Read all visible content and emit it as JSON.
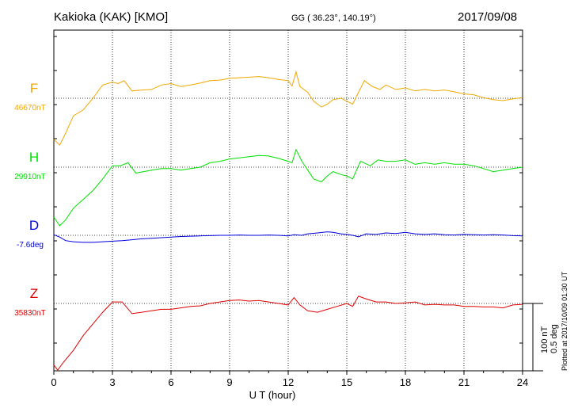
{
  "header": {
    "station": "Kakioka (KAK)  [KMO]",
    "coordinates": "GG ( 36.23°, 140.19°)",
    "date": "2017/09/08"
  },
  "plotted_note": "Plotted at 2017/10/09 01:30 UT",
  "scale": {
    "field": "100 nT",
    "angle": "0.5 deg"
  },
  "colors": {
    "F": "#f0a800",
    "H": "#00e000",
    "D": "#0000dd",
    "Z": "#dd0000"
  },
  "chart_data": {
    "type": "line",
    "title": "Kakioka (KAK)  [KMO]",
    "xlabel": "U T (hour)",
    "xlim": [
      0,
      24
    ],
    "xticks": [
      "0",
      "3",
      "6",
      "9",
      "12",
      "15",
      "18",
      "21",
      "24"
    ],
    "grid": true,
    "scale_bar": "100 nT / 0.5 deg",
    "series": [
      {
        "key": "F",
        "name": "F",
        "baseline": "46670nT",
        "values": [
          [
            0,
            -140
          ],
          [
            0.3,
            -160
          ],
          [
            0.6,
            -120
          ],
          [
            1,
            -60
          ],
          [
            1.5,
            -40
          ],
          [
            2,
            0
          ],
          [
            2.5,
            45
          ],
          [
            3,
            55
          ],
          [
            3.3,
            50
          ],
          [
            3.6,
            60
          ],
          [
            4,
            25
          ],
          [
            4.5,
            28
          ],
          [
            5,
            30
          ],
          [
            5.5,
            45
          ],
          [
            6,
            50
          ],
          [
            6.5,
            40
          ],
          [
            7,
            45
          ],
          [
            7.5,
            52
          ],
          [
            8,
            60
          ],
          [
            8.5,
            62
          ],
          [
            9,
            68
          ],
          [
            9.5,
            70
          ],
          [
            10,
            72
          ],
          [
            10.5,
            74
          ],
          [
            11,
            70
          ],
          [
            11.5,
            64
          ],
          [
            12,
            60
          ],
          [
            12.2,
            42
          ],
          [
            12.4,
            90
          ],
          [
            12.6,
            40
          ],
          [
            13,
            20
          ],
          [
            13.3,
            -10
          ],
          [
            13.7,
            -30
          ],
          [
            14,
            -20
          ],
          [
            14.3,
            -5
          ],
          [
            14.7,
            0
          ],
          [
            15,
            -10
          ],
          [
            15.3,
            -20
          ],
          [
            15.6,
            20
          ],
          [
            15.9,
            60
          ],
          [
            16.3,
            40
          ],
          [
            16.7,
            30
          ],
          [
            17,
            45
          ],
          [
            17.5,
            30
          ],
          [
            18,
            35
          ],
          [
            18.5,
            25
          ],
          [
            19,
            30
          ],
          [
            19.5,
            25
          ],
          [
            20,
            28
          ],
          [
            20.5,
            22
          ],
          [
            21,
            15
          ],
          [
            21.5,
            12
          ],
          [
            22,
            2
          ],
          [
            22.5,
            -5
          ],
          [
            23,
            -8
          ],
          [
            23.5,
            -2
          ],
          [
            24,
            2
          ]
        ]
      },
      {
        "key": "H",
        "name": "H",
        "baseline": "29910nT",
        "values": [
          [
            0,
            -170
          ],
          [
            0.3,
            -200
          ],
          [
            0.6,
            -180
          ],
          [
            1,
            -140
          ],
          [
            1.5,
            -110
          ],
          [
            2,
            -80
          ],
          [
            2.5,
            -40
          ],
          [
            3,
            5
          ],
          [
            3.4,
            5
          ],
          [
            3.8,
            15
          ],
          [
            4.2,
            -20
          ],
          [
            4.6,
            -15
          ],
          [
            5,
            -10
          ],
          [
            5.5,
            -5
          ],
          [
            6,
            -5
          ],
          [
            6.5,
            -10
          ],
          [
            7,
            -5
          ],
          [
            7.5,
            0
          ],
          [
            8,
            15
          ],
          [
            8.5,
            20
          ],
          [
            9,
            28
          ],
          [
            9.5,
            32
          ],
          [
            10,
            36
          ],
          [
            10.5,
            40
          ],
          [
            11,
            38
          ],
          [
            11.5,
            30
          ],
          [
            12,
            20
          ],
          [
            12.2,
            15
          ],
          [
            12.4,
            60
          ],
          [
            12.7,
            20
          ],
          [
            13,
            -10
          ],
          [
            13.3,
            -40
          ],
          [
            13.7,
            -50
          ],
          [
            14,
            -30
          ],
          [
            14.3,
            -15
          ],
          [
            14.7,
            -25
          ],
          [
            15,
            -30
          ],
          [
            15.3,
            -40
          ],
          [
            15.7,
            20
          ],
          [
            16.2,
            5
          ],
          [
            16.6,
            25
          ],
          [
            17,
            20
          ],
          [
            17.5,
            20
          ],
          [
            18,
            25
          ],
          [
            18.5,
            10
          ],
          [
            19,
            15
          ],
          [
            19.5,
            10
          ],
          [
            20,
            15
          ],
          [
            20.5,
            10
          ],
          [
            21,
            10
          ],
          [
            21.5,
            5
          ],
          [
            22,
            -5
          ],
          [
            22.5,
            -15
          ],
          [
            23,
            -10
          ],
          [
            23.5,
            -5
          ],
          [
            24,
            0
          ]
        ]
      },
      {
        "key": "D",
        "name": "D",
        "baseline": "-7.6deg",
        "values": [
          [
            0,
            2
          ],
          [
            0.3,
            -6
          ],
          [
            0.6,
            -18
          ],
          [
            1,
            -22
          ],
          [
            1.5,
            -24
          ],
          [
            2,
            -24
          ],
          [
            2.5,
            -22
          ],
          [
            3,
            -20
          ],
          [
            3.5,
            -18
          ],
          [
            4,
            -15
          ],
          [
            4.5,
            -12
          ],
          [
            5,
            -10
          ],
          [
            5.5,
            -8
          ],
          [
            6,
            -6
          ],
          [
            6.5,
            -4
          ],
          [
            7,
            -3
          ],
          [
            7.5,
            -2
          ],
          [
            8,
            -1
          ],
          [
            8.5,
            0
          ],
          [
            9,
            0
          ],
          [
            9.5,
            1
          ],
          [
            10,
            0
          ],
          [
            10.5,
            0
          ],
          [
            11,
            1
          ],
          [
            11.5,
            0
          ],
          [
            12,
            -2
          ],
          [
            12.3,
            2
          ],
          [
            12.7,
            0
          ],
          [
            13,
            5
          ],
          [
            13.5,
            8
          ],
          [
            14,
            12
          ],
          [
            14.3,
            10
          ],
          [
            14.7,
            5
          ],
          [
            15,
            3
          ],
          [
            15.3,
            0
          ],
          [
            15.6,
            -5
          ],
          [
            16,
            5
          ],
          [
            16.5,
            3
          ],
          [
            17,
            8
          ],
          [
            17.5,
            6
          ],
          [
            18,
            10
          ],
          [
            18.5,
            5
          ],
          [
            19,
            3
          ],
          [
            19.5,
            5
          ],
          [
            20,
            2
          ],
          [
            20.5,
            1
          ],
          [
            21,
            3
          ],
          [
            21.5,
            2
          ],
          [
            22,
            1
          ],
          [
            22.5,
            2
          ],
          [
            23,
            1
          ],
          [
            23.5,
            -1
          ],
          [
            24,
            -2
          ]
        ]
      },
      {
        "key": "Z",
        "name": "Z",
        "baseline": "35830nT",
        "values": [
          [
            0,
            -210
          ],
          [
            0.2,
            -230
          ],
          [
            0.5,
            -200
          ],
          [
            1,
            -160
          ],
          [
            1.5,
            -110
          ],
          [
            2,
            -70
          ],
          [
            2.5,
            -30
          ],
          [
            3,
            5
          ],
          [
            3.5,
            5
          ],
          [
            4,
            -35
          ],
          [
            4.5,
            -30
          ],
          [
            5,
            -25
          ],
          [
            5.5,
            -20
          ],
          [
            6,
            -20
          ],
          [
            6.5,
            -15
          ],
          [
            7,
            -10
          ],
          [
            7.5,
            -8
          ],
          [
            8,
            0
          ],
          [
            8.5,
            5
          ],
          [
            9,
            10
          ],
          [
            9.5,
            12
          ],
          [
            10,
            8
          ],
          [
            10.5,
            10
          ],
          [
            11,
            5
          ],
          [
            11.5,
            0
          ],
          [
            12,
            -5
          ],
          [
            12.3,
            20
          ],
          [
            12.6,
            -5
          ],
          [
            13,
            -25
          ],
          [
            13.5,
            -30
          ],
          [
            14,
            -20
          ],
          [
            14.5,
            -10
          ],
          [
            15,
            0
          ],
          [
            15.3,
            -10
          ],
          [
            15.6,
            25
          ],
          [
            16,
            15
          ],
          [
            16.5,
            5
          ],
          [
            17,
            5
          ],
          [
            17.5,
            0
          ],
          [
            18,
            2
          ],
          [
            18.5,
            5
          ],
          [
            19,
            -5
          ],
          [
            19.5,
            -3
          ],
          [
            20,
            -5
          ],
          [
            20.5,
            -5
          ],
          [
            21,
            -10
          ],
          [
            21.5,
            -10
          ],
          [
            22,
            -12
          ],
          [
            22.5,
            -12
          ],
          [
            23,
            -15
          ],
          [
            23.5,
            -5
          ],
          [
            24,
            -3
          ]
        ]
      }
    ]
  }
}
